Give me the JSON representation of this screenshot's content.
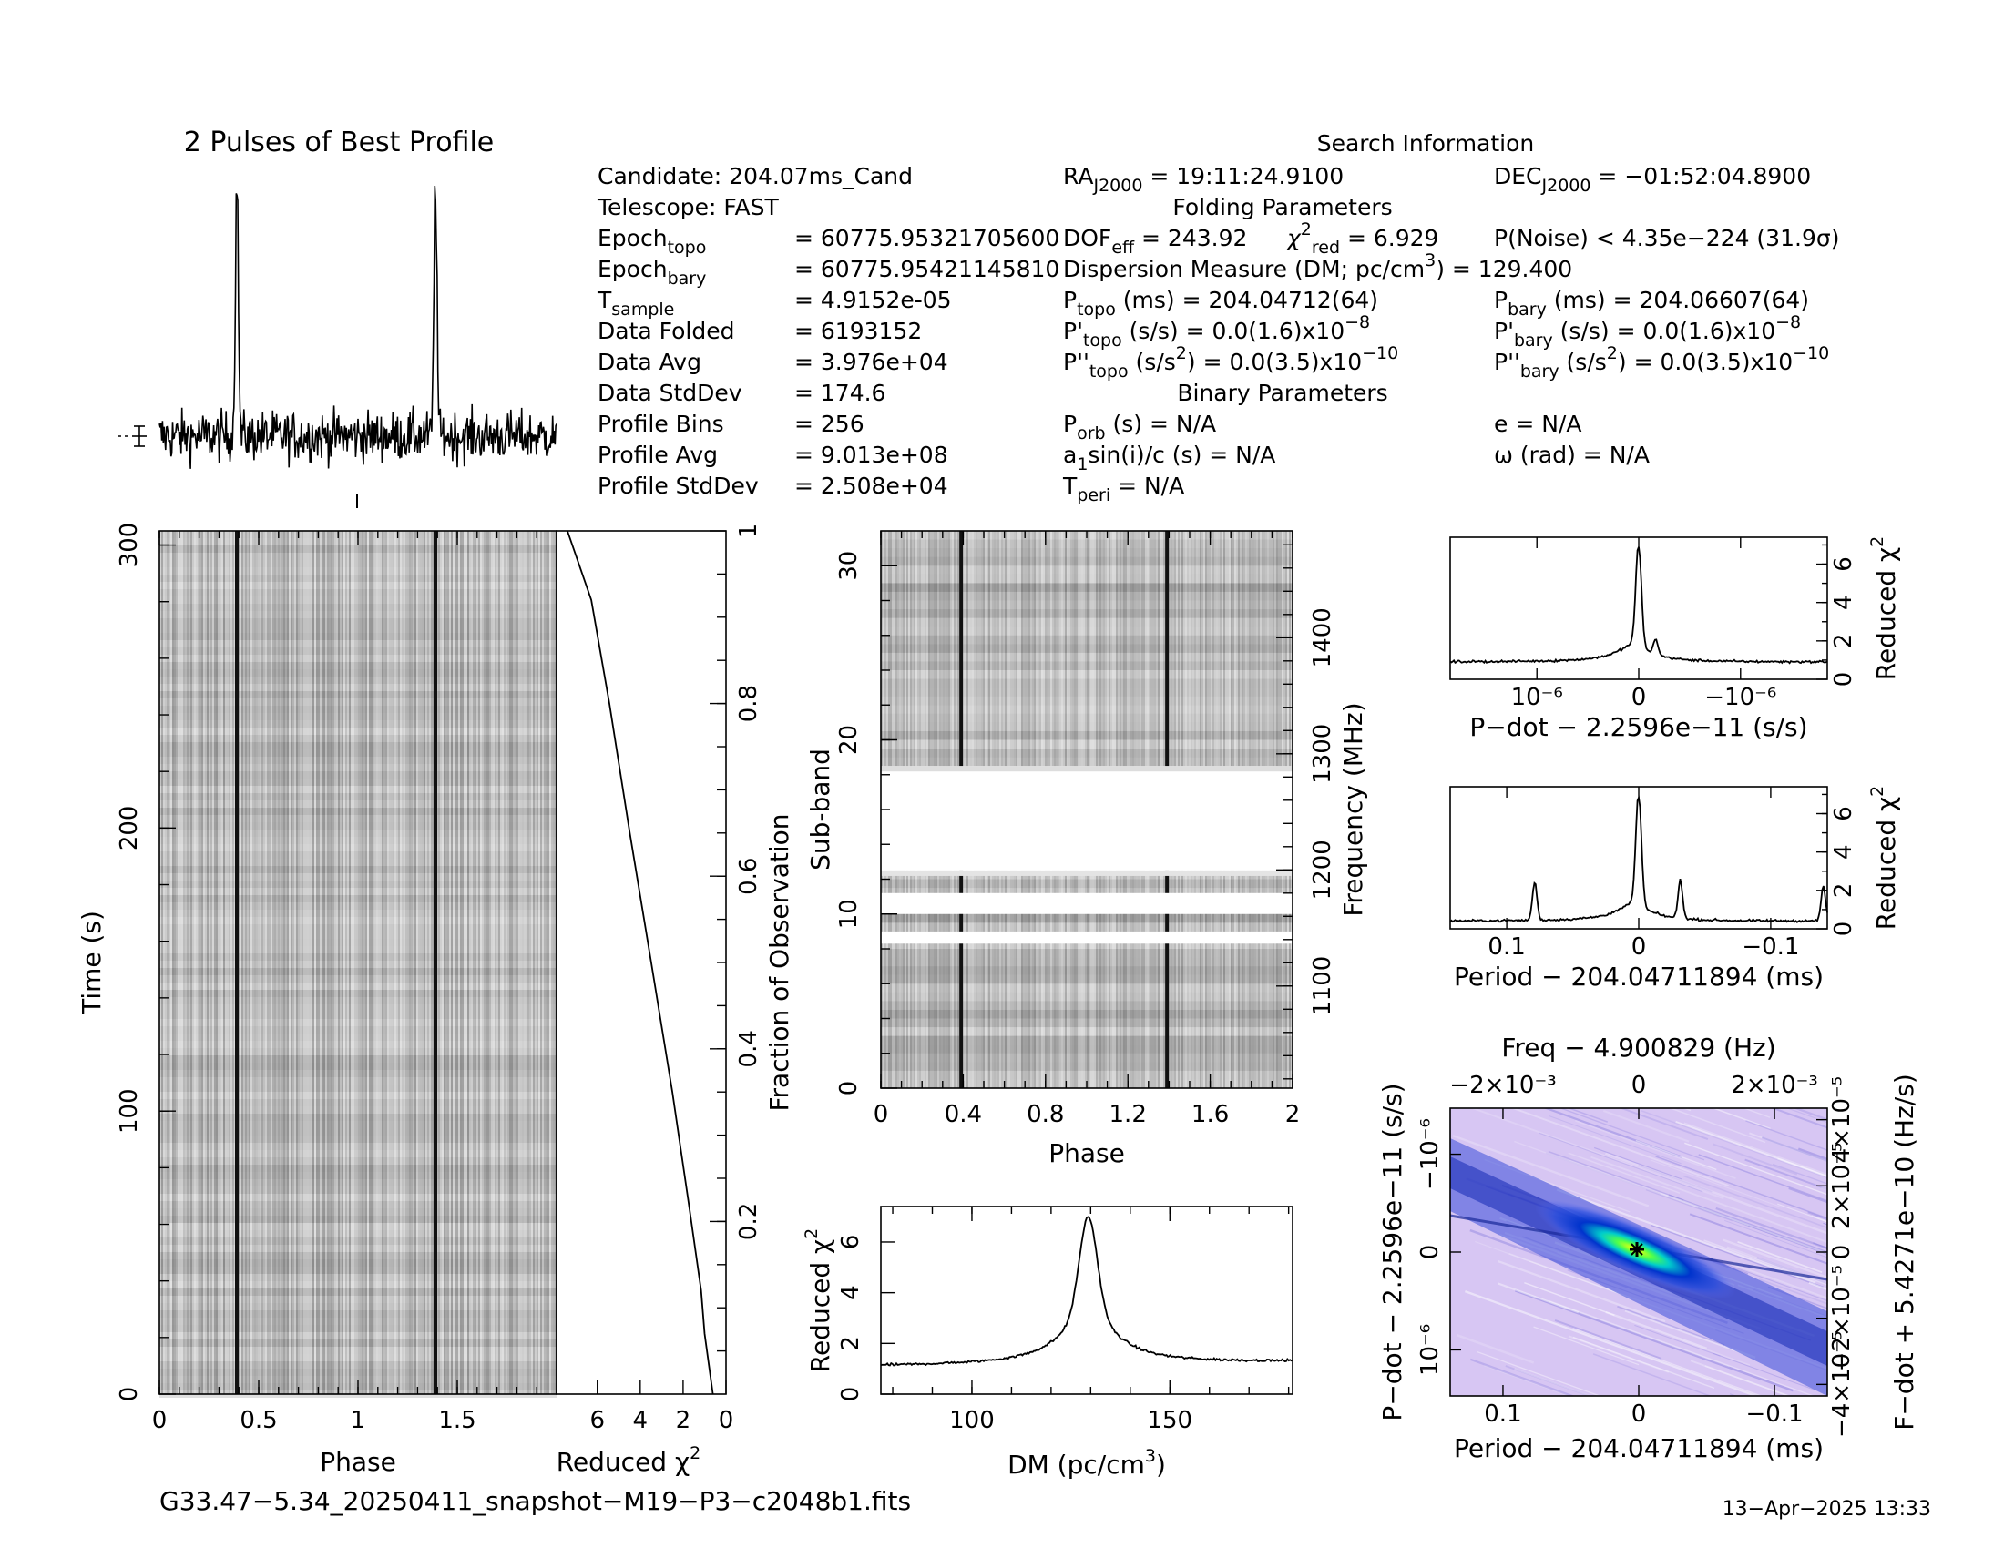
{
  "title_profile": "2 Pulses of Best Profile",
  "search_title": "Search Information",
  "folding_title": "Folding Parameters",
  "binary_title": "Binary Parameters",
  "candidate": "Candidate:  204.07ms_Cand",
  "telescope": "Telescope:  FAST",
  "left_info": [
    {
      "name": "Epoch",
      "sub": "topo",
      "value": "= 60775.95321705600"
    },
    {
      "name": "Epoch",
      "sub": "bary",
      "value": "= 60775.95421145810"
    },
    {
      "name": "T",
      "sub": "sample",
      "value": "=  4.9152e-05"
    },
    {
      "name": "Data Folded",
      "sub": "",
      "value": "=  6193152"
    },
    {
      "name": "Data Avg",
      "sub": "",
      "value": "=  3.976e+04"
    },
    {
      "name": "Data StdDev",
      "sub": "",
      "value": "=  174.6"
    },
    {
      "name": "Profile Bins",
      "sub": "",
      "value": "=  256"
    },
    {
      "name": "Profile Avg",
      "sub": "",
      "value": "=  9.013e+08"
    },
    {
      "name": "Profile StdDev",
      "sub": "",
      "value": "=  2.508e+04"
    }
  ],
  "ra": {
    "label": "RA",
    "sub": "J2000",
    "value": " = 19:11:24.9100"
  },
  "dec": {
    "label": "DEC",
    "sub": "J2000",
    "value": " = −01:52:04.8900"
  },
  "dof": {
    "label": "DOF",
    "sub": "eff",
    "value": " = 243.92"
  },
  "chi": {
    "label": "χ",
    "sup": "2",
    "sub": "red",
    "value": " = 6.929"
  },
  "pnoise": "P(Noise) < 4.35e−224  (31.9σ)",
  "dm_line": {
    "text": "Dispersion Measure (DM; pc/cm",
    "sup": "3",
    "tail": ") = 129.400"
  },
  "p_topo": {
    "label": "P",
    "sub": "topo",
    "value": " (ms) =  204.04712(64)"
  },
  "p_bary": {
    "label": "P",
    "sub": "bary",
    "value": " (ms) =  204.06607(64)"
  },
  "pd_topo": {
    "label": "P'",
    "sub": "topo",
    "value": " (s/s) = 0.0(1.6)x10",
    "exp": "−8"
  },
  "pd_bary": {
    "label": "P'",
    "sub": "bary",
    "value": " (s/s) = 0.0(1.6)x10",
    "exp": "−8"
  },
  "pdd_topo": {
    "label": "P''",
    "sub": "topo",
    "value": " (s/s",
    "sup": "2",
    "tail": ") = 0.0(3.5)x10",
    "exp": "−10"
  },
  "pdd_bary": {
    "label": "P''",
    "sub": "bary",
    "value": " (s/s",
    "sup": "2",
    "tail": ") = 0.0(3.5)x10",
    "exp": "−10"
  },
  "porb": {
    "label": "P",
    "sub": "orb",
    "value": " (s) = N/A"
  },
  "ecc": "e = N/A",
  "asini": {
    "label": "a",
    "sub": "1",
    "value": "sin(i)/c (s) = N/A"
  },
  "omega": "ω (rad) = N/A",
  "tperi": {
    "label": "T",
    "sub": "peri",
    "value": " = N/A"
  },
  "filename": "G33.47−5.34_20250411_snapshot−M19−P3−c2048b1.fits",
  "date": "13−Apr−2025 13:33",
  "chart_data": [
    {
      "id": "profile",
      "type": "line",
      "title": "2 Pulses of Best Profile",
      "x_range": [
        0,
        2
      ],
      "peaks_phase": [
        0.39,
        1.39
      ],
      "peak_relative_height": 9
    },
    {
      "id": "time_phase",
      "type": "heatmap",
      "xlabel": "Phase",
      "ylabel": "Time (s)",
      "xlim": [
        0,
        2
      ],
      "ylim": [
        0,
        305
      ],
      "xticks": [
        "0",
        "0.5",
        "1",
        "1.5"
      ],
      "yticks": [
        "0",
        "100",
        "200",
        "300"
      ],
      "pulse_phase": [
        0.39,
        1.39
      ]
    },
    {
      "id": "chi_vs_time",
      "type": "line",
      "xlabel": "Reduced χ",
      "xlabel_sup": "2",
      "ylabel": "Fraction of Observation",
      "xticks": [
        "6",
        "4",
        "2",
        "0"
      ],
      "yticks": [
        "0.2",
        "0.4",
        "0.6",
        "0.8",
        "1"
      ],
      "xlim": [
        7.9,
        0
      ],
      "points": [
        [
          0.6,
          0.0
        ],
        [
          1.0,
          0.07
        ],
        [
          1.2,
          0.12
        ],
        [
          1.7,
          0.22
        ],
        [
          2.5,
          0.35
        ],
        [
          3.5,
          0.5
        ],
        [
          4.5,
          0.65
        ],
        [
          5.4,
          0.8
        ],
        [
          6.3,
          0.92
        ],
        [
          7.4,
          1.0
        ]
      ]
    },
    {
      "id": "subband_phase",
      "type": "heatmap",
      "xlabel": "Phase",
      "ylabel": "Sub-band",
      "ylabel_right": "Frequency (MHz)",
      "xticks": [
        "0",
        "0.4",
        "0.8",
        "1.2",
        "1.6",
        "2"
      ],
      "yticks": [
        "0",
        "10",
        "20",
        "30"
      ],
      "yticks_right": [
        "1100",
        "1200",
        "1300",
        "1400"
      ],
      "xlim": [
        0,
        2
      ],
      "ylim": [
        0,
        32
      ],
      "masked_subbands": [
        [
          12.5,
          18.5
        ],
        [
          10.0,
          11.2
        ],
        [
          8.3,
          9.0
        ]
      ],
      "pulse_phase": [
        0.39,
        1.39
      ]
    },
    {
      "id": "dm_curve",
      "type": "line",
      "xlabel": "DM (pc/cm",
      "xlabel_sup": "3",
      "xlabel_tail": ")",
      "ylabel": "Reduced χ",
      "ylabel_sup": "2",
      "xticks": [
        "100",
        "150"
      ],
      "yticks": [
        "0",
        "2",
        "4",
        "6"
      ],
      "xlim": [
        77,
        181
      ],
      "ylim": [
        0,
        7.4
      ],
      "peak_x": 129.4,
      "peak_y": 6.9,
      "baseline": 1.1
    },
    {
      "id": "pdot_curve",
      "type": "line",
      "xlabel": "P−dot − 2.2596e−11 (s/s)",
      "ylabel": "Reduced χ",
      "ylabel_sup": "2",
      "xticks": [
        "10⁻⁶",
        "0",
        "−10⁻⁶"
      ],
      "yticks": [
        "0",
        "2",
        "4",
        "6"
      ],
      "xlim": [
        1.9e-06,
        -1.9e-06
      ],
      "ylim": [
        0,
        7.4
      ],
      "peak_y": 7.0,
      "baseline": 0.9
    },
    {
      "id": "period_curve",
      "type": "line",
      "xlabel": "Period − 204.04711894 (ms)",
      "ylabel": "Reduced χ",
      "ylabel_sup": "2",
      "xticks": [
        "0.1",
        "0",
        "−0.1"
      ],
      "yticks": [
        "0",
        "2",
        "4",
        "6"
      ],
      "xlim": [
        0.145,
        -0.145
      ],
      "ylim": [
        0,
        7.4
      ],
      "peak_y": 7.0,
      "baseline": 0.4,
      "side_peaks": [
        [
          0.08,
          2.0
        ],
        [
          -0.032,
          2.0
        ],
        [
          -0.142,
          1.8
        ]
      ]
    },
    {
      "id": "p_pdot",
      "type": "heatmap",
      "title": "Freq − 4.900829 (Hz)",
      "xlabel": "Period − 204.04711894 (ms)",
      "ylabel": "P−dot − 2.2596e−11 (s/s)",
      "ylabel_right": "F−dot + 5.4271e−10 (Hz/s)",
      "xticks": [
        "0.1",
        "0",
        "−0.1"
      ],
      "xticks_top": [
        "−2×10⁻³",
        "0",
        "2×10⁻³"
      ],
      "yticks": [
        "−10⁻⁶",
        "0",
        "10⁻⁶"
      ],
      "yticks_right": [
        "−4×10⁻⁵",
        "−2×10⁻⁵",
        "0",
        "2×10⁻⁵",
        "4×10⁻⁵"
      ],
      "best_point": [
        0,
        0
      ]
    }
  ]
}
